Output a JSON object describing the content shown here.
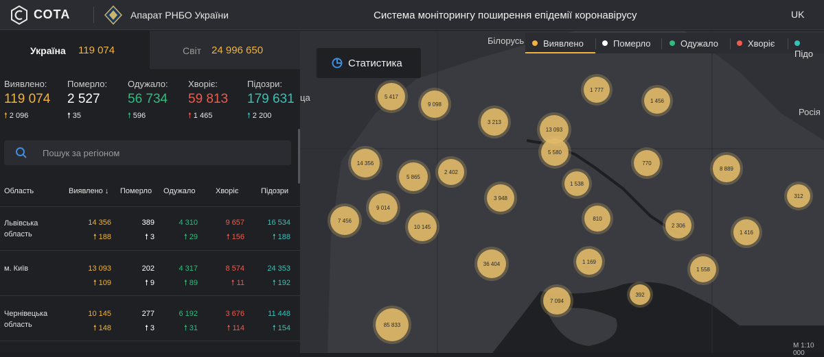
{
  "header": {
    "logo": "СОТА",
    "org": "Апарат РНБО України",
    "title": "Система моніторингу поширення епідемії коронавірусу",
    "lang": "UK"
  },
  "tabs": {
    "ukraine": {
      "label": "Україна",
      "value": "119 074"
    },
    "world": {
      "label": "Світ",
      "value": "24 996 650"
    }
  },
  "stats": [
    {
      "label": "Виявлено:",
      "value": "119 074",
      "delta": "2 096",
      "color": "#f1b33c"
    },
    {
      "label": "Померло:",
      "value": "2 527",
      "delta": "35",
      "color": "#ffffff"
    },
    {
      "label": "Одужало:",
      "value": "56 734",
      "delta": "596",
      "color": "#2ebd7f"
    },
    {
      "label": "Хворіє:",
      "value": "59 813",
      "delta": "1 465",
      "color": "#ef5b4c"
    },
    {
      "label": "Підозри:",
      "value": "179 631",
      "delta": "2 200",
      "color": "#35c3b8"
    }
  ],
  "search": {
    "placeholder": "Пошук за регіоном"
  },
  "table": {
    "columns": [
      "Область",
      "Виявлено",
      "Померло",
      "Одужало",
      "Хворіє",
      "Підозри"
    ],
    "rows": [
      {
        "region": "Львівська область",
        "values": [
          "14 356",
          "389",
          "4 310",
          "9 657",
          "16 534"
        ],
        "deltas": [
          "188",
          "3",
          "29",
          "156",
          "188"
        ]
      },
      {
        "region": "м. Київ",
        "values": [
          "13 093",
          "202",
          "4 317",
          "8 574",
          "24 353"
        ],
        "deltas": [
          "109",
          "9",
          "89",
          "11",
          "192"
        ]
      },
      {
        "region": "Чернівецька область",
        "values": [
          "10 145",
          "277",
          "6 192",
          "3 676",
          "11 448"
        ],
        "deltas": [
          "148",
          "3",
          "31",
          "114",
          "154"
        ]
      }
    ]
  },
  "statistics_button": "Статистика",
  "legend": [
    {
      "label": "Виявлено",
      "color": "#f1b33c"
    },
    {
      "label": "Померло",
      "color": "#ffffff"
    },
    {
      "label": "Одужало",
      "color": "#2ebd7f"
    },
    {
      "label": "Хворіє",
      "color": "#ef5b4c"
    },
    {
      "label": "Підо",
      "color": "#35c3b8"
    }
  ],
  "map_labels": {
    "belarus": "Білорусь",
    "russia": "Росія",
    "edge_left": "ца",
    "scale": "M 1:10 000"
  },
  "bubbles": [
    "5 417",
    "9 098",
    "1 777",
    "1 456",
    "3 213",
    "13 093",
    "5 580",
    "14 356",
    "5 865",
    "2 402",
    "770",
    "8 889",
    "1 538",
    "312",
    "9 014",
    "3 948",
    "7 456",
    "10 145",
    "810",
    "2 306",
    "1 416",
    "36 404",
    "1 169",
    "1 558",
    "392",
    "7 094",
    "85 833"
  ]
}
